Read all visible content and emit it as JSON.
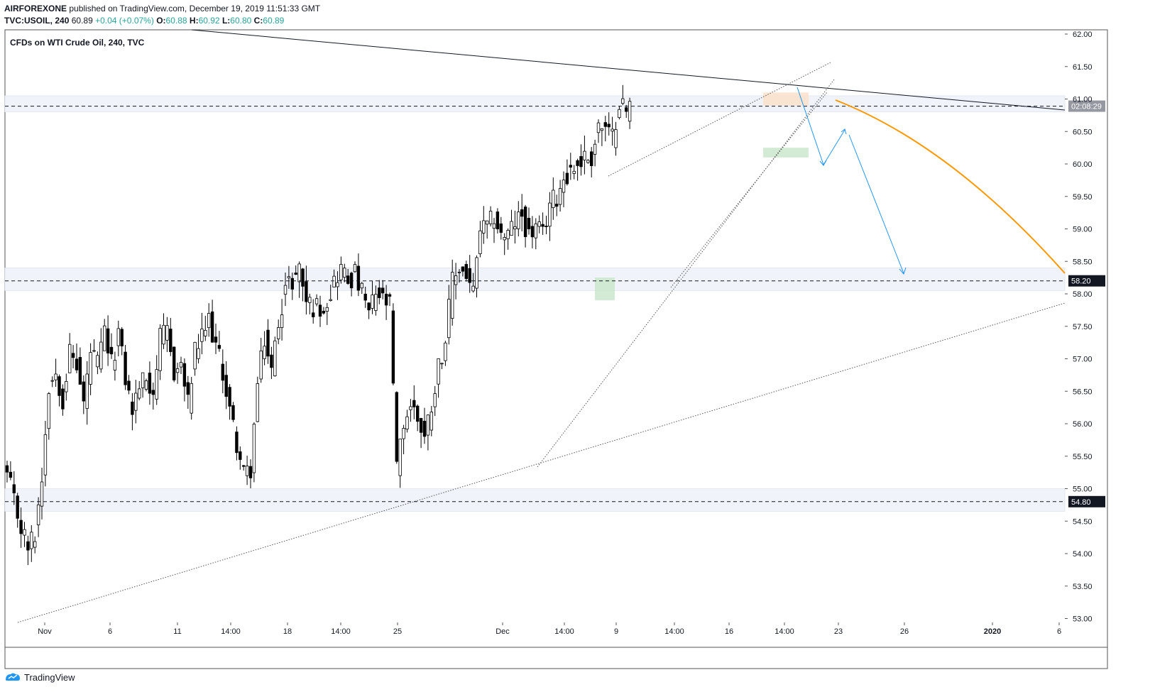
{
  "header": {
    "author": "AIRFOREXONE",
    "published_text": "published on TradingView.com, December 19, 2019 11:51:33 GMT",
    "symbol": "TVC:USOIL",
    "interval": "240",
    "last": "60.89",
    "change": "+0.04 (+0.07%)",
    "o_label": "O:",
    "o_val": "60.88",
    "h_label": "H:",
    "h_val": "60.92",
    "l_label": "L:",
    "l_val": "60.80",
    "c_label": "C:",
    "c_val": "60.89"
  },
  "brand": {
    "name": "TradingView",
    "icon": "tradingview-logo-icon"
  },
  "colors": {
    "candle_up_fill": "#ffffff",
    "candle_down_fill": "#000000",
    "candle_border": "#000000",
    "projection_curve": "#ff9800",
    "projection_arrows": "#2196f3",
    "zone_band": "#f0f3fa",
    "supply_box": "#fbe0c8",
    "demand_box": "#c8e6c9"
  },
  "chart_data": {
    "type": "candlestick",
    "title": "CFDs on WTI Crude Oil, 240, TVC",
    "y_range": [
      52.95,
      62.2
    ],
    "y_ticks": [
      "62.00",
      "61.50",
      "61.00",
      "60.50",
      "60.00",
      "59.50",
      "59.00",
      "58.50",
      "58.00",
      "57.50",
      "57.00",
      "56.50",
      "56.00",
      "55.50",
      "55.00",
      "54.50",
      "54.00",
      "53.50",
      "53.00"
    ],
    "x_ticks": [
      "Nov",
      "6",
      "11",
      "14:00",
      "18",
      "14:00",
      "25",
      "Dec",
      "14:00",
      "9",
      "14:00",
      "16",
      "14:00",
      "23",
      "26",
      "2020",
      "6"
    ],
    "horizontal_levels": [
      {
        "price": 60.89,
        "label": "02:08:29"
      },
      {
        "price": 58.2,
        "label": "58.20"
      },
      {
        "price": 54.8,
        "label": "54.80"
      }
    ],
    "zones": [
      {
        "from": 60.8,
        "to": 61.05
      },
      {
        "from": 58.05,
        "to": 58.4
      },
      {
        "from": 54.65,
        "to": 55.0
      }
    ],
    "anchor_points": [
      [
        0,
        55.2
      ],
      [
        2,
        54.8
      ],
      [
        4,
        54.4
      ],
      [
        6,
        54.1
      ],
      [
        8,
        54.3
      ],
      [
        10,
        55.2
      ],
      [
        12,
        56.6
      ],
      [
        14,
        56.8
      ],
      [
        16,
        56.4
      ],
      [
        18,
        57.1
      ],
      [
        20,
        56.9
      ],
      [
        22,
        56.3
      ],
      [
        24,
        57.1
      ],
      [
        26,
        56.9
      ],
      [
        28,
        57.4
      ],
      [
        30,
        56.9
      ],
      [
        32,
        57.4
      ],
      [
        34,
        56.7
      ],
      [
        36,
        56.2
      ],
      [
        38,
        56.6
      ],
      [
        40,
        56.7
      ],
      [
        42,
        56.5
      ],
      [
        44,
        57.3
      ],
      [
        46,
        57.4
      ],
      [
        48,
        56.8
      ],
      [
        50,
        56.9
      ],
      [
        52,
        56.3
      ],
      [
        54,
        57.1
      ],
      [
        56,
        57.3
      ],
      [
        58,
        57.6
      ],
      [
        60,
        57.2
      ],
      [
        62,
        56.8
      ],
      [
        64,
        56.2
      ],
      [
        66,
        55.7
      ],
      [
        68,
        55.2
      ],
      [
        70,
        55.3
      ],
      [
        72,
        56.6
      ],
      [
        74,
        57.3
      ],
      [
        76,
        56.8
      ],
      [
        78,
        57.6
      ],
      [
        80,
        58.1
      ],
      [
        82,
        58.2
      ],
      [
        84,
        58.4
      ],
      [
        86,
        57.9
      ],
      [
        88,
        57.8
      ],
      [
        90,
        57.8
      ],
      [
        92,
        57.9
      ],
      [
        94,
        58.2
      ],
      [
        96,
        58.4
      ],
      [
        98,
        58.2
      ],
      [
        100,
        58.3
      ],
      [
        102,
        58.0
      ],
      [
        104,
        57.7
      ],
      [
        106,
        58.0
      ],
      [
        108,
        57.9
      ],
      [
        110,
        57.8
      ],
      [
        112,
        55.3
      ],
      [
        114,
        56.0
      ],
      [
        116,
        56.3
      ],
      [
        118,
        56.1
      ],
      [
        120,
        55.8
      ],
      [
        122,
        56.3
      ],
      [
        124,
        56.9
      ],
      [
        126,
        57.3
      ],
      [
        128,
        58.2
      ],
      [
        130,
        58.4
      ],
      [
        132,
        58.3
      ],
      [
        134,
        58.0
      ],
      [
        136,
        59.0
      ],
      [
        138,
        59.0
      ],
      [
        140,
        59.2
      ],
      [
        142,
        58.9
      ],
      [
        144,
        58.9
      ],
      [
        146,
        59.1
      ],
      [
        148,
        59.2
      ],
      [
        150,
        58.9
      ],
      [
        152,
        59.0
      ],
      [
        154,
        58.9
      ],
      [
        156,
        59.4
      ],
      [
        158,
        59.5
      ],
      [
        160,
        59.8
      ],
      [
        162,
        59.9
      ],
      [
        164,
        60.0
      ],
      [
        166,
        60.1
      ],
      [
        168,
        60.1
      ],
      [
        170,
        60.6
      ],
      [
        172,
        60.5
      ],
      [
        174,
        60.4
      ],
      [
        176,
        61.0
      ],
      [
        178,
        60.8
      ],
      [
        179,
        60.89
      ]
    ]
  }
}
